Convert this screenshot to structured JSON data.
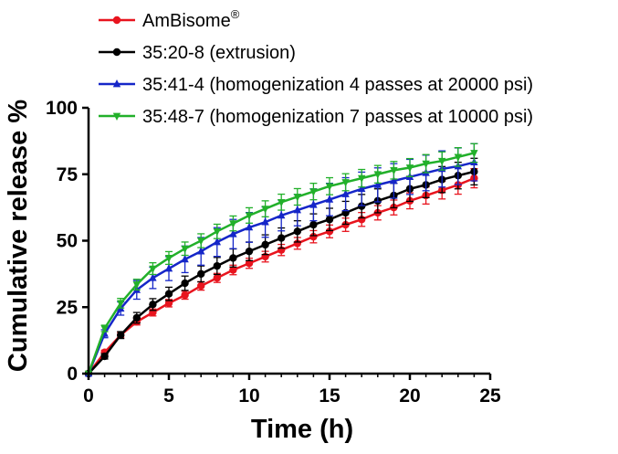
{
  "chart_data": {
    "type": "line",
    "xlabel": "Time (h)",
    "ylabel": "Cumulative release %",
    "xlim": [
      0,
      25
    ],
    "ylim": [
      0,
      100
    ],
    "xticks": [
      0,
      5,
      10,
      15,
      20,
      25
    ],
    "yticks": [
      0,
      25,
      50,
      75,
      100
    ],
    "grid": false,
    "legend_position": "top-left",
    "x": [
      0,
      1,
      2,
      3,
      4,
      5,
      6,
      7,
      8,
      9,
      10,
      11,
      12,
      13,
      14,
      15,
      16,
      17,
      18,
      19,
      20,
      21,
      22,
      23,
      24
    ],
    "series": [
      {
        "name": "AmBisome",
        "name_superscript": "®",
        "color": "#e8141e",
        "marker": "circle",
        "values": [
          0,
          8,
          14.5,
          19.5,
          23,
          26.5,
          29.5,
          33,
          36,
          39,
          41.5,
          44,
          46.5,
          49,
          51.5,
          53.5,
          56,
          58,
          60.5,
          62.5,
          65,
          67,
          69,
          71,
          73.5
        ],
        "errors": [
          0,
          0.8,
          1,
          1.2,
          1.3,
          1.4,
          1.5,
          1.6,
          1.7,
          1.8,
          1.9,
          2,
          2.1,
          2.2,
          2.3,
          2.4,
          2.5,
          2.6,
          2.7,
          2.8,
          3,
          3.2,
          3.3,
          3.5,
          3.6
        ]
      },
      {
        "name": "35:20-8 (extrusion)",
        "color": "#000000",
        "marker": "circle",
        "values": [
          0,
          6.5,
          14.5,
          21,
          26,
          30,
          34,
          37.5,
          40.5,
          43.5,
          46,
          48.5,
          51,
          53.5,
          56,
          58,
          60.5,
          63,
          65,
          67,
          69.5,
          71,
          73,
          74.5,
          76
        ],
        "errors": [
          0,
          1,
          1.3,
          2,
          2.2,
          2.5,
          2.7,
          3,
          3.2,
          3.4,
          3.5,
          3.7,
          3.8,
          4,
          4.1,
          4.2,
          4.3,
          4.4,
          4.5,
          4.6,
          4.7,
          4.8,
          4.9,
          5,
          5
        ]
      },
      {
        "name": "35:41-4 (homogenization 4 passes at 20000 psi)",
        "color": "#1526c8",
        "marker": "triangle-up",
        "values": [
          0,
          15,
          24.5,
          31.5,
          36,
          39.5,
          43,
          46,
          49.5,
          52.5,
          55,
          57,
          59.5,
          61.5,
          63.5,
          65.5,
          67.5,
          69.5,
          71,
          72.5,
          74,
          75.5,
          77,
          78,
          79.5
        ],
        "errors": [
          0,
          1.5,
          2.5,
          3.5,
          4,
          4.5,
          5,
          5.2,
          5.4,
          5.5,
          5.6,
          5.7,
          5.8,
          5.9,
          6,
          6.1,
          6.2,
          6.3,
          6.4,
          6.5,
          6.6,
          6.7,
          6.8,
          6.9,
          7
        ]
      },
      {
        "name": "35:48-7 (homogenization 7 passes at 10000 psi)",
        "color": "#22b02a",
        "marker": "triangle-down",
        "values": [
          0,
          17,
          26.5,
          33.5,
          39.5,
          43.5,
          47,
          50,
          53.5,
          56.5,
          59.5,
          62,
          64.5,
          66.5,
          68.5,
          70.5,
          72,
          73.5,
          75,
          76.5,
          77.5,
          79,
          80,
          81.5,
          83
        ],
        "errors": [
          0,
          1.2,
          1.8,
          2,
          2.2,
          2.4,
          2.5,
          2.6,
          2.7,
          2.8,
          2.9,
          3,
          3,
          3.1,
          3.1,
          3.2,
          3.2,
          3.3,
          3.3,
          3.3,
          3.4,
          3.4,
          3.4,
          3.5,
          3.5
        ]
      }
    ]
  }
}
